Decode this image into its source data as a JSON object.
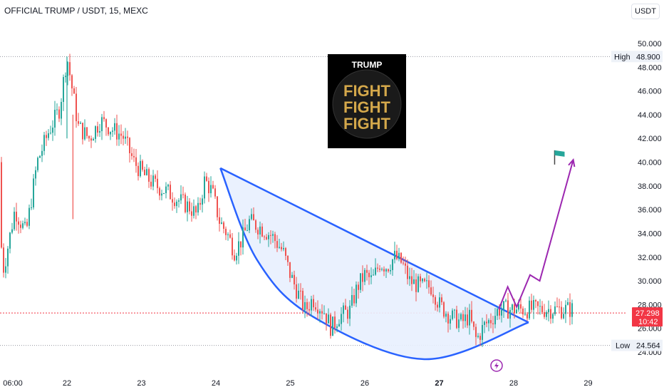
{
  "header": {
    "title": "OFFICIAL TRUMP / USDT, 15, MEXC",
    "currency": "USDT"
  },
  "logo": {
    "top_text": "TRUMP",
    "lines": [
      "FIGHT",
      "FIGHT",
      "FIGHT"
    ]
  },
  "chart_data": {
    "type": "candlestick",
    "title": "OFFICIAL TRUMP / USDT, 15, MEXC",
    "y_axis": {
      "ticks": [
        "50.000",
        "48.000",
        "46.000",
        "44.000",
        "42.000",
        "40.000",
        "38.000",
        "36.000",
        "34.000",
        "32.000",
        "30.000",
        "28.000",
        "26.000",
        "24.000"
      ],
      "range": [
        23.0,
        51.5
      ]
    },
    "x_axis": {
      "ticks": [
        "06:00",
        "22",
        "23",
        "24",
        "25",
        "26",
        "27",
        "28",
        "29"
      ],
      "bold_tick": "27"
    },
    "high": {
      "label": "High",
      "value": "48.900"
    },
    "low": {
      "label": "Low",
      "value": "24.564"
    },
    "current": {
      "price": "27.298",
      "countdown": "10:42"
    },
    "price_path": [
      [
        0.0,
        40.0
      ],
      [
        0.15,
        31.0
      ],
      [
        0.3,
        36.0
      ],
      [
        0.45,
        34.0
      ],
      [
        0.6,
        40.0
      ],
      [
        0.75,
        42.5
      ],
      [
        0.9,
        44.5
      ],
      [
        1.0,
        48.9
      ],
      [
        1.15,
        43.0
      ],
      [
        1.3,
        42.0
      ],
      [
        1.45,
        43.5
      ],
      [
        1.6,
        42.8
      ],
      [
        1.75,
        42.2
      ],
      [
        1.9,
        40.0
      ],
      [
        2.05,
        38.8
      ],
      [
        2.2,
        38.0
      ],
      [
        2.35,
        37.5
      ],
      [
        2.5,
        36.8
      ],
      [
        2.65,
        36.2
      ],
      [
        2.75,
        35.5
      ],
      [
        2.85,
        38.5
      ],
      [
        2.95,
        37.5
      ],
      [
        3.05,
        35.0
      ],
      [
        3.15,
        34.0
      ],
      [
        3.25,
        32.5
      ],
      [
        3.35,
        33.5
      ],
      [
        3.45,
        35.0
      ],
      [
        3.6,
        34.5
      ],
      [
        3.75,
        33.8
      ],
      [
        3.9,
        32.5
      ],
      [
        4.0,
        30.5
      ],
      [
        4.1,
        29.0
      ],
      [
        4.2,
        27.5
      ],
      [
        4.3,
        28.5
      ],
      [
        4.45,
        27.5
      ],
      [
        4.55,
        26.0
      ],
      [
        4.65,
        27.0
      ],
      [
        4.8,
        27.5
      ],
      [
        4.9,
        29.5
      ],
      [
        5.0,
        30.5
      ],
      [
        5.1,
        30.0
      ],
      [
        5.2,
        31.5
      ],
      [
        5.3,
        31.2
      ],
      [
        5.4,
        32.0
      ],
      [
        5.5,
        31.5
      ],
      [
        5.6,
        30.0
      ],
      [
        5.75,
        29.5
      ],
      [
        5.9,
        29.5
      ],
      [
        6.0,
        28.0
      ],
      [
        6.15,
        27.0
      ],
      [
        6.3,
        26.5
      ],
      [
        6.4,
        27.0
      ],
      [
        6.5,
        25.0
      ],
      [
        6.6,
        26.2
      ],
      [
        6.7,
        26.8
      ],
      [
        6.8,
        27.6
      ]
    ],
    "wedge": {
      "top_line": [
        [
          3.06,
          39.5
        ],
        [
          5.0,
          32.7
        ],
        [
          7.2,
          26.5
        ]
      ],
      "bottom_curve": [
        [
          3.06,
          39.5
        ],
        [
          3.55,
          31.8
        ],
        [
          4.3,
          27.0
        ],
        [
          5.8,
          23.4
        ],
        [
          7.2,
          26.5
        ]
      ]
    },
    "projection_path": [
      [
        6.8,
        27.6
      ],
      [
        6.92,
        29.5
      ],
      [
        7.04,
        27.8
      ],
      [
        7.22,
        30.5
      ],
      [
        7.35,
        30.0
      ],
      [
        7.8,
        40.2
      ]
    ],
    "flag": {
      "x": 7.55,
      "y": 40.4
    },
    "ref_lines": {
      "high": 48.9,
      "low": 24.564,
      "current": 27.298
    },
    "colors": {
      "up": "#26a69a",
      "down": "#ef5350",
      "wedge_line": "#2962ff",
      "wedge_fill": "#e8f0fe",
      "projection": "#9c27b0",
      "current_line": "#f23645",
      "flag": "#26a69a"
    }
  }
}
